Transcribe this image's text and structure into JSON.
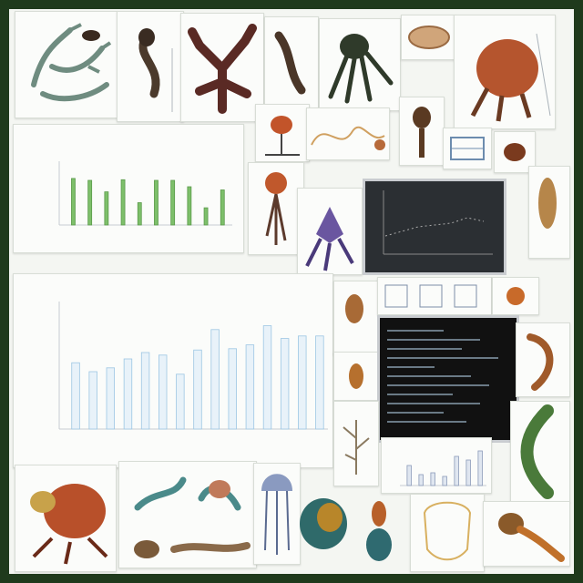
{
  "scene": {
    "frame_color": "#1f3a1c",
    "sheet_color": "#f4f6f2",
    "accent_bar_color": "#7dbf6a",
    "big_bar_color": "#9cc6e3"
  },
  "big_chart_data": {
    "bars": [
      0.52,
      0.45,
      0.48,
      0.55,
      0.6,
      0.58,
      0.43,
      0.62,
      0.78,
      0.63,
      0.66,
      0.81,
      0.71,
      0.73,
      0.73
    ]
  },
  "small_chart_data": {
    "bars": [
      0.73,
      0.7,
      0.52,
      0.71,
      0.35,
      0.7,
      0.7,
      0.6,
      0.27,
      0.55
    ]
  },
  "inset_chart_data": {
    "bars": [
      0.55,
      0.3,
      0.35,
      0.25,
      0.8,
      0.7,
      0.95
    ]
  }
}
